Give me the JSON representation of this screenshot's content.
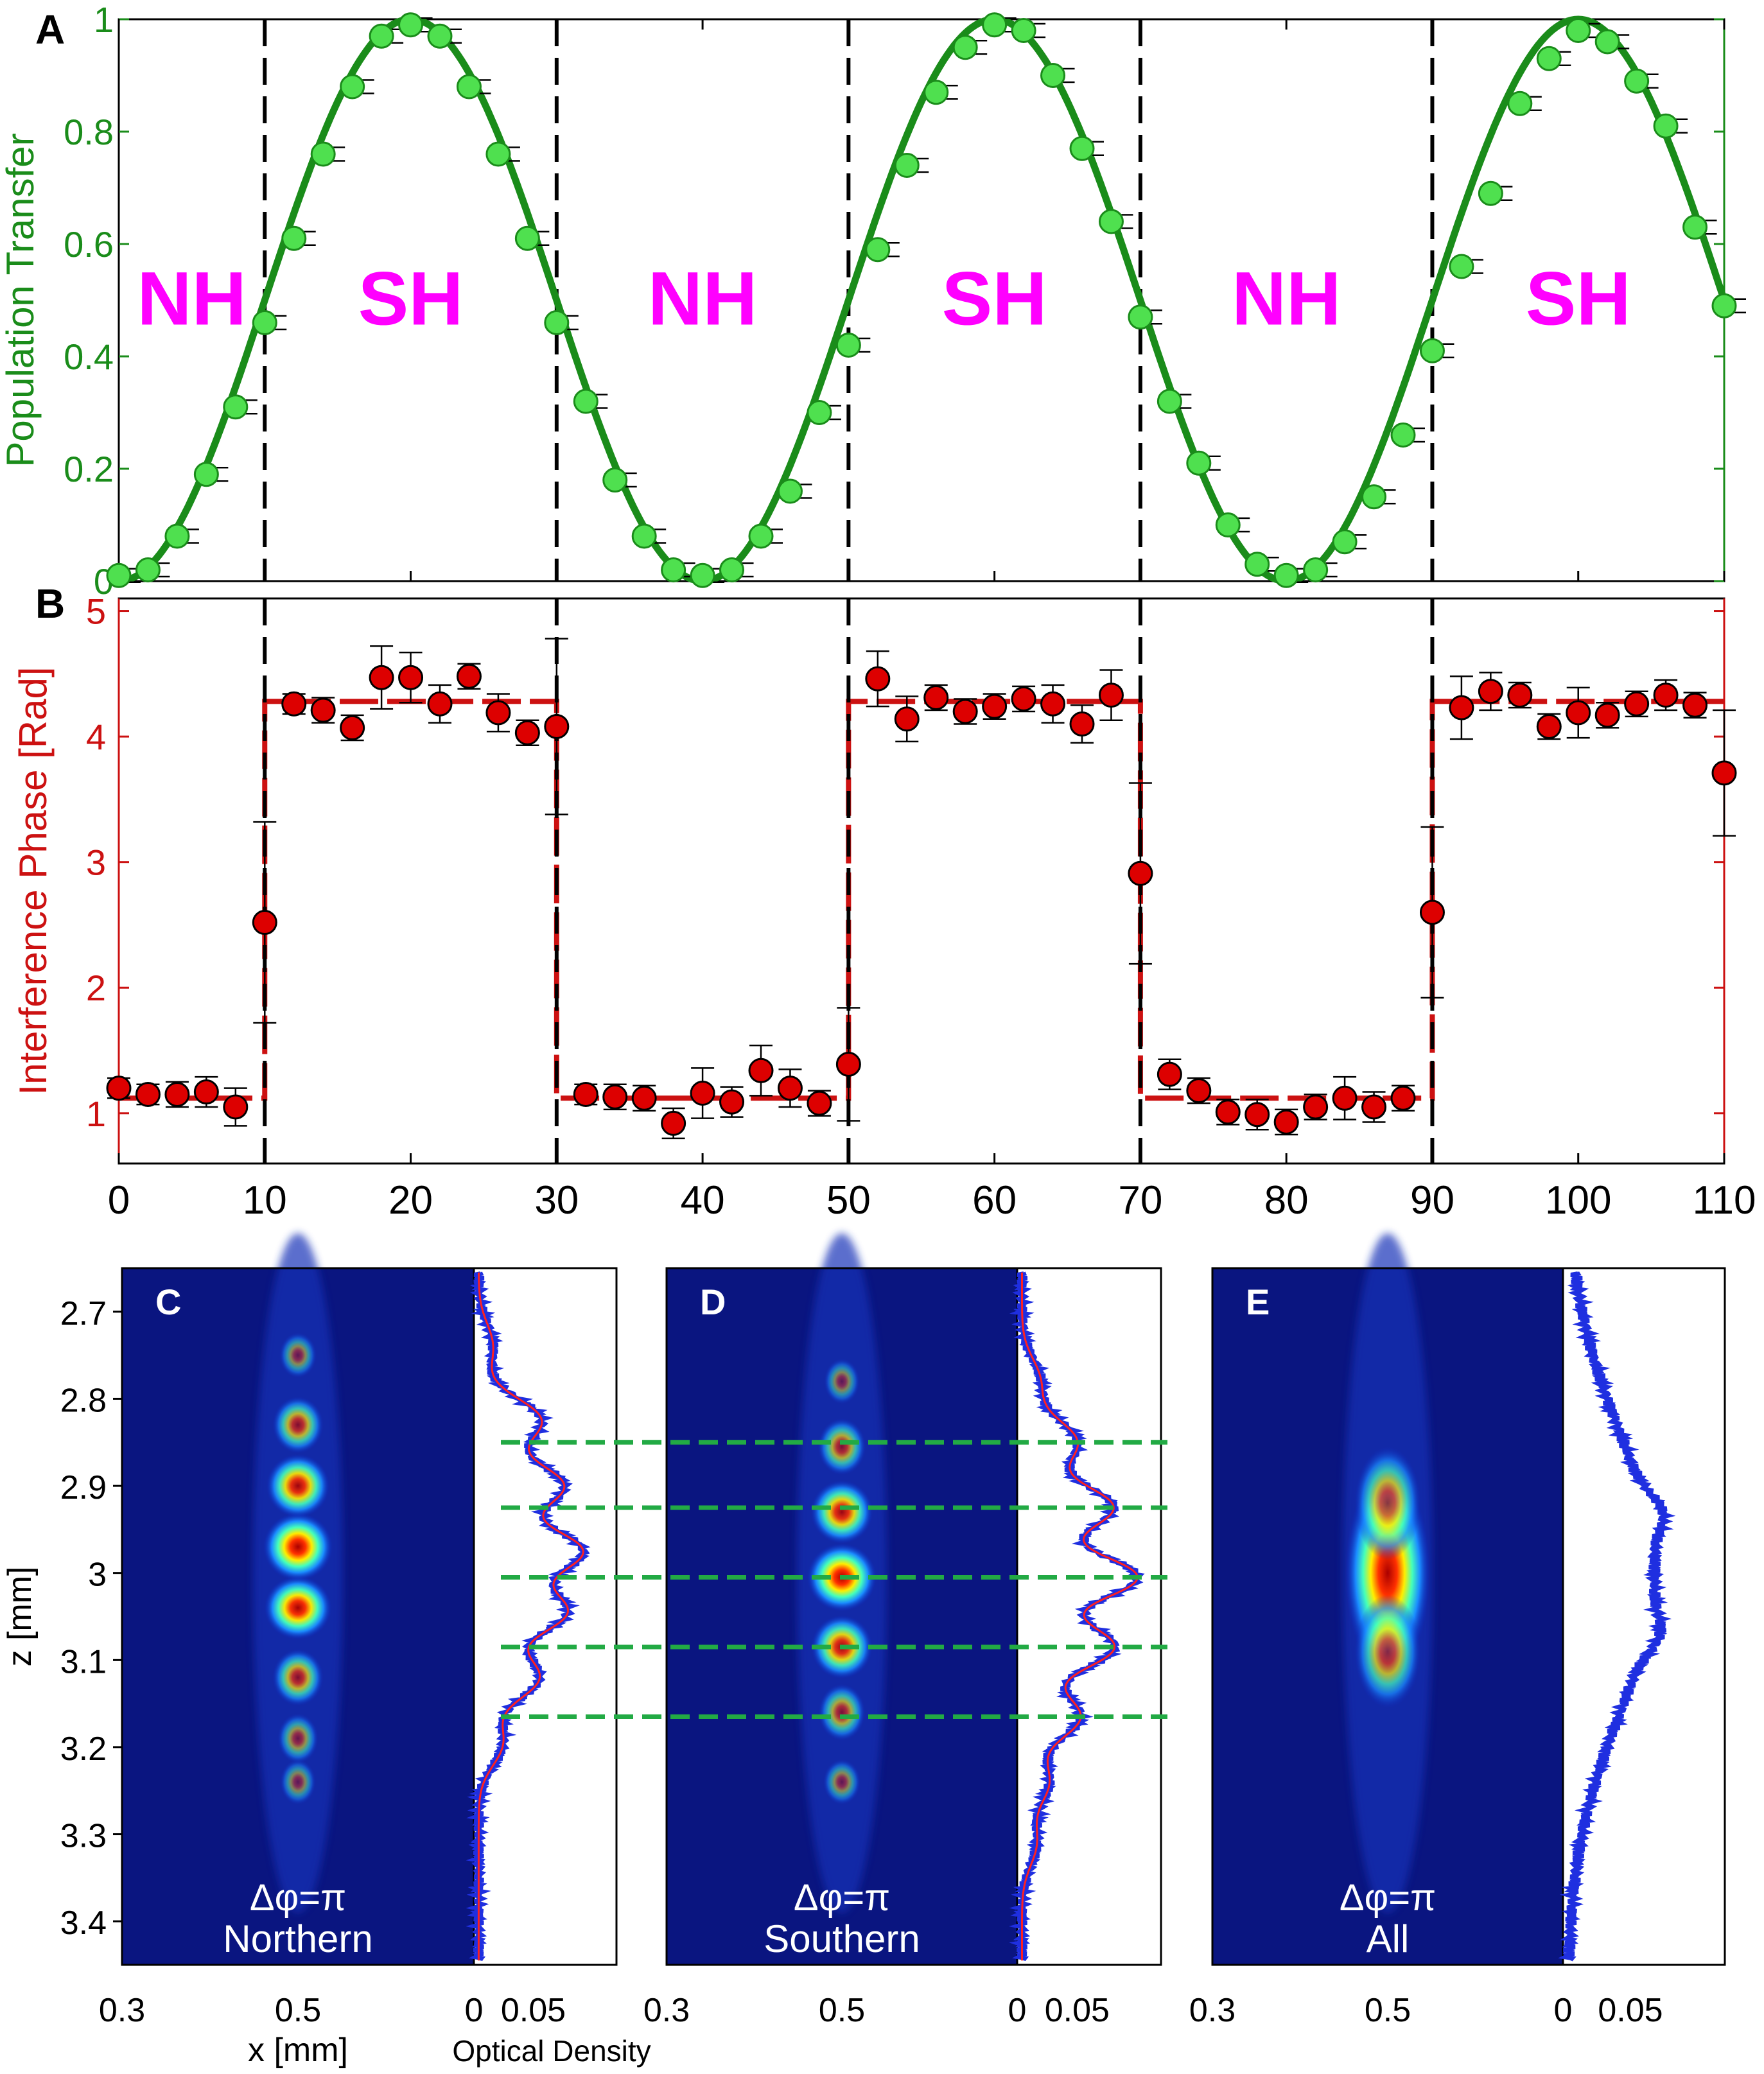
{
  "colors": {
    "green_line": "#1a8c1a",
    "green_marker": "#4fe04f",
    "red_line": "#cc1111",
    "red_marker": "#dd0000",
    "magenta": "#ff00ff",
    "axis": "#000000",
    "image_bg": "#0a1580",
    "guide_green": "#22aa44",
    "profile_blue": "#1f2fe0",
    "profile_red": "#ff2020"
  },
  "chart_data": [
    {
      "id": "A",
      "type": "scatter",
      "panel_letter": "A",
      "ylabel": "Population Transfer",
      "xlim": [
        0,
        110
      ],
      "ylim": [
        0,
        1
      ],
      "yticks": [
        "0",
        "0.2",
        "0.4",
        "0.6",
        "0.8",
        "1"
      ],
      "ytick_values": [
        0,
        0.2,
        0.4,
        0.6,
        0.8,
        1
      ],
      "region_labels": [
        "NH",
        "SH",
        "NH",
        "SH",
        "NH",
        "SH"
      ],
      "region_centers": [
        5,
        20,
        40,
        60,
        80,
        100
      ],
      "region_label_y": 0.5,
      "dividers": [
        10,
        30,
        50,
        70,
        90
      ],
      "fit": {
        "form": "0.5*(1-cos(2*pi*x/40))"
      },
      "series": [
        {
          "points": [
            [
              0,
              0.01
            ],
            [
              2,
              0.02
            ],
            [
              4,
              0.08
            ],
            [
              6,
              0.19
            ],
            [
              8,
              0.31
            ],
            [
              10,
              0.46
            ],
            [
              12,
              0.61
            ],
            [
              14,
              0.76
            ],
            [
              16,
              0.88
            ],
            [
              18,
              0.97
            ],
            [
              20,
              0.99
            ],
            [
              22,
              0.97
            ],
            [
              24,
              0.88
            ],
            [
              26,
              0.76
            ],
            [
              28,
              0.61
            ],
            [
              30,
              0.46
            ],
            [
              32,
              0.32
            ],
            [
              34,
              0.18
            ],
            [
              36,
              0.08
            ],
            [
              38,
              0.02
            ],
            [
              40,
              0.01
            ],
            [
              42,
              0.02
            ],
            [
              44,
              0.08
            ],
            [
              46,
              0.16
            ],
            [
              48,
              0.3
            ],
            [
              50,
              0.42
            ],
            [
              52,
              0.59
            ],
            [
              54,
              0.74
            ],
            [
              56,
              0.87
            ],
            [
              58,
              0.95
            ],
            [
              60,
              0.99
            ],
            [
              62,
              0.98
            ],
            [
              64,
              0.9
            ],
            [
              66,
              0.77
            ],
            [
              68,
              0.64
            ],
            [
              70,
              0.47
            ],
            [
              72,
              0.32
            ],
            [
              74,
              0.21
            ],
            [
              76,
              0.1
            ],
            [
              78,
              0.03
            ],
            [
              80,
              0.01
            ],
            [
              82,
              0.02
            ],
            [
              84,
              0.07
            ],
            [
              86,
              0.15
            ],
            [
              88,
              0.26
            ],
            [
              90,
              0.41
            ],
            [
              92,
              0.56
            ],
            [
              94,
              0.69
            ],
            [
              96,
              0.85
            ],
            [
              98,
              0.93
            ],
            [
              100,
              0.98
            ],
            [
              102,
              0.96
            ],
            [
              104,
              0.89
            ],
            [
              106,
              0.81
            ],
            [
              108,
              0.63
            ],
            [
              110,
              0.49
            ]
          ]
        }
      ]
    },
    {
      "id": "B",
      "type": "scatter",
      "panel_letter": "B",
      "ylabel": "Interference Phase [Rad]",
      "xlim": [
        0,
        110
      ],
      "ylim": [
        0.6,
        5.1
      ],
      "yticks": [
        "1",
        "2",
        "3",
        "4",
        "5"
      ],
      "ytick_values": [
        1,
        2,
        3,
        4,
        5
      ],
      "xticks": [
        "0",
        "10",
        "20",
        "30",
        "40",
        "50",
        "60",
        "70",
        "80",
        "90",
        "100",
        "110"
      ],
      "xtick_values": [
        0,
        10,
        20,
        30,
        40,
        50,
        60,
        70,
        80,
        90,
        100,
        110
      ],
      "dividers": [
        10,
        30,
        50,
        70,
        90
      ],
      "fit_levels": {
        "low": 1.12,
        "high": 4.28
      },
      "series": [
        {
          "points": [
            [
              0,
              1.2,
              0.08
            ],
            [
              2,
              1.15,
              0.08
            ],
            [
              4,
              1.15,
              0.1
            ],
            [
              6,
              1.17,
              0.12
            ],
            [
              8,
              1.05,
              0.15
            ],
            [
              10,
              2.52,
              0.8
            ],
            [
              12,
              4.26,
              0.08
            ],
            [
              14,
              4.21,
              0.1
            ],
            [
              16,
              4.07,
              0.1
            ],
            [
              18,
              4.47,
              0.25
            ],
            [
              20,
              4.47,
              0.2
            ],
            [
              22,
              4.26,
              0.15
            ],
            [
              24,
              4.48,
              0.1
            ],
            [
              26,
              4.19,
              0.15
            ],
            [
              28,
              4.03,
              0.1
            ],
            [
              30,
              4.08,
              0.7
            ],
            [
              32,
              1.15,
              0.08
            ],
            [
              34,
              1.13,
              0.1
            ],
            [
              36,
              1.12,
              0.1
            ],
            [
              38,
              0.92,
              0.12
            ],
            [
              40,
              1.16,
              0.2
            ],
            [
              42,
              1.09,
              0.12
            ],
            [
              44,
              1.34,
              0.2
            ],
            [
              46,
              1.2,
              0.15
            ],
            [
              48,
              1.08,
              0.1
            ],
            [
              50,
              1.39,
              0.45
            ],
            [
              52,
              4.46,
              0.22
            ],
            [
              54,
              4.14,
              0.18
            ],
            [
              56,
              4.31,
              0.1
            ],
            [
              58,
              4.2,
              0.1
            ],
            [
              60,
              4.24,
              0.1
            ],
            [
              62,
              4.3,
              0.1
            ],
            [
              64,
              4.26,
              0.15
            ],
            [
              66,
              4.1,
              0.15
            ],
            [
              68,
              4.33,
              0.2
            ],
            [
              70,
              2.91,
              0.72
            ],
            [
              72,
              1.31,
              0.12
            ],
            [
              74,
              1.18,
              0.1
            ],
            [
              76,
              1.01,
              0.1
            ],
            [
              78,
              0.99,
              0.12
            ],
            [
              80,
              0.93,
              0.1
            ],
            [
              82,
              1.05,
              0.1
            ],
            [
              84,
              1.12,
              0.17
            ],
            [
              86,
              1.05,
              0.12
            ],
            [
              88,
              1.12,
              0.1
            ],
            [
              90,
              2.6,
              0.68
            ],
            [
              92,
              4.23,
              0.25
            ],
            [
              94,
              4.36,
              0.15
            ],
            [
              96,
              4.33,
              0.1
            ],
            [
              98,
              4.08,
              0.1
            ],
            [
              100,
              4.19,
              0.2
            ],
            [
              102,
              4.17,
              0.1
            ],
            [
              104,
              4.26,
              0.1
            ],
            [
              106,
              4.33,
              0.12
            ],
            [
              108,
              4.25,
              0.1
            ],
            [
              110,
              3.71,
              0.5
            ]
          ]
        }
      ]
    },
    {
      "id": "images",
      "type": "heatmap",
      "ylabel": "z [mm]",
      "zlim": [
        2.65,
        3.45
      ],
      "zticks": [
        "2.7",
        "2.8",
        "2.9",
        "3",
        "3.1",
        "3.2",
        "3.3",
        "3.4"
      ],
      "ztick_values": [
        2.7,
        2.8,
        2.9,
        3.0,
        3.1,
        3.2,
        3.3,
        3.4
      ],
      "xlabel": "x [mm]",
      "xticks": [
        "0.3",
        "0.5"
      ],
      "xtick_values": [
        0.3,
        0.5
      ],
      "xlim": [
        0.3,
        0.7
      ],
      "od_label": "Optical Density",
      "od_ticks": [
        "0",
        "0.05"
      ],
      "od_tick_values": [
        0,
        0.05
      ],
      "od_xlim": [
        0,
        0.12
      ],
      "guide_lines": [
        2.85,
        2.925,
        3.005,
        3.085,
        3.165
      ],
      "panels": [
        {
          "letter": "C",
          "phase_label": "Δφ=π",
          "caption": "Northern",
          "lobes": [
            [
              3.04,
              0.95,
              0.028
            ],
            [
              3.24,
              0.18,
              0.02
            ],
            [
              2.97,
              1.0,
              0.03
            ],
            [
              3.12,
              0.55,
              0.025
            ],
            [
              2.9,
              0.85,
              0.028
            ],
            [
              2.83,
              0.55,
              0.025
            ],
            [
              3.19,
              0.3,
              0.022
            ],
            [
              2.75,
              0.22,
              0.02
            ]
          ],
          "profile": "fringes",
          "od_peaks": [
            [
              2.825,
              0.052
            ],
            [
              2.9,
              0.07
            ],
            [
              2.975,
              0.085
            ],
            [
              3.045,
              0.072
            ],
            [
              3.12,
              0.05
            ],
            [
              3.195,
              0.02
            ],
            [
              2.74,
              0.012
            ]
          ],
          "od_offset": 0.004
        },
        {
          "letter": "D",
          "phase_label": "Δφ=π",
          "caption": "Southern",
          "lobes": [
            [
              3.005,
              1.0,
              0.03
            ],
            [
              2.93,
              0.82,
              0.028
            ],
            [
              3.085,
              0.8,
              0.028
            ],
            [
              2.855,
              0.48,
              0.025
            ],
            [
              3.16,
              0.45,
              0.025
            ],
            [
              3.24,
              0.22,
              0.02
            ],
            [
              2.78,
              0.18,
              0.02
            ]
          ],
          "profile": "fringes",
          "od_peaks": [
            [
              2.85,
              0.045
            ],
            [
              2.925,
              0.075
            ],
            [
              3.005,
              0.095
            ],
            [
              3.085,
              0.076
            ],
            [
              3.165,
              0.048
            ],
            [
              3.24,
              0.022
            ],
            [
              2.78,
              0.015
            ],
            [
              3.31,
              0.012
            ]
          ],
          "od_offset": 0.004
        },
        {
          "letter": "E",
          "phase_label": "Δφ=π",
          "caption": "All",
          "lobes": [
            [
              3.0,
              1.0,
              0.09
            ],
            [
              2.92,
              0.55,
              0.05
            ],
            [
              3.09,
              0.55,
              0.05
            ]
          ],
          "profile": "smooth",
          "od_peaks": [
            [
              3.0,
              0.065,
              0.16
            ],
            [
              2.93,
              0.012,
              0.02
            ],
            [
              3.07,
              0.01,
              0.02
            ]
          ],
          "od_offset": 0.003
        }
      ]
    }
  ]
}
